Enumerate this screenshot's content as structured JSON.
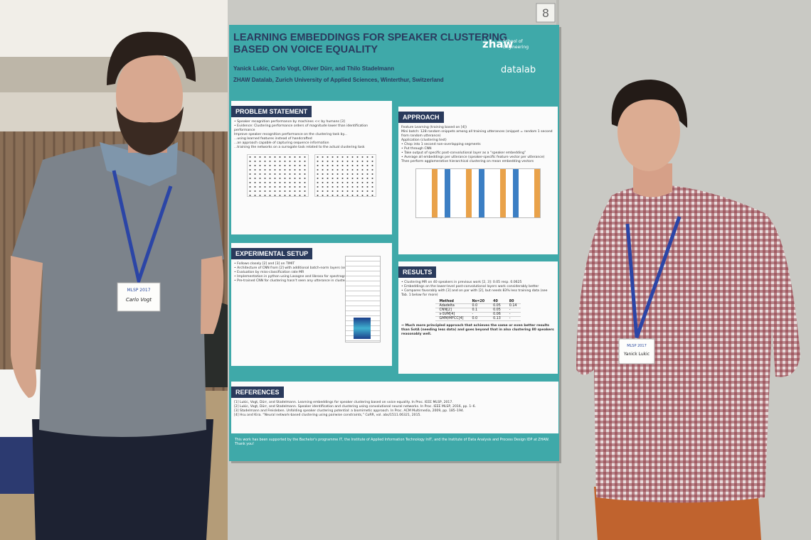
{
  "poster": {
    "number": "8",
    "title": [
      "LEARNING EMBEDDINGS FOR SPEAKER CLUSTERING",
      "BASED ON VOICE EQUALITY"
    ],
    "authors": "Yanick Lukic, Carlo Vogt, Oliver Dürr, and Thilo Stadelmann",
    "affiliation": "ZHAW Datalab, Zurich University of Applied Sciences, Winterthur, Switzerland",
    "logos": {
      "zhaw": "zhaw",
      "school": [
        "School of",
        "Engineering"
      ],
      "datalab": "datalab"
    },
    "sections": [
      {
        "heading": "PROBLEM STATEMENT",
        "lines": [
          "• Speaker recognition performance by machines << by humans [3]",
          "• Evidence: Clustering performance orders of magnitude lower than identification performance",
          "Improve speaker recognition performance on the clustering task by...",
          "...using learned features instead of handcrafted",
          "...an approach capable of capturing sequence information",
          "...training the networks on a surrogate task related to the actual clustering task"
        ]
      },
      {
        "heading": "APPROACH",
        "lines": [
          "Feature Learning (training based on [4])",
          "Mini batch: 128 random snippets among all training utterances (snippet = random 1 second from random utterance)",
          "Application (clustering test)",
          "• Chop into 1 second non-overlapping segments",
          "• Put through CNN",
          "• Take output of specific post-convolutional layer as a “speaker embedding”",
          "• Average all embeddings per utterance (speaker-specific feature vector per utterance)",
          "Then perform agglomerative hierarchical clustering on mean embedding vectors"
        ]
      },
      {
        "heading": "EXPERIMENTAL SETUP",
        "lines": [
          "• Follows closely [2] and [3] on TIMIT",
          "• Architecture of CNN from [2] with additional batch-norm layers (see Fig. 3)",
          "• Evaluation by miss-classification rate MR",
          "• Implementation in python using Lasagne and librosa for spectrograms",
          "• Pre-trained CNN for clustering hasn't seen any utterance in cluster during training!"
        ]
      },
      {
        "heading": "RESULTS",
        "lines": [
          "• Clustering MR on 40 speakers in previous work [2, 3]: 0.05 resp. 0.0625",
          "• Embeddings on the lower-level post-convolutional layers work considerably better",
          "• Compares favorably with [3] and on par with [2], but needs 83% less training data (see Tab. 1 below for more)"
        ],
        "table": {
          "header": [
            "Method",
            "Ns=20",
            "40",
            "80"
          ],
          "rows": [
            [
              "Adadelta",
              "0.0",
              "0.05",
              "0.14"
            ],
            [
              "CNN[2]",
              "0.1",
              "0.05",
              "-"
            ],
            [
              "ν-SVM[4]",
              "-",
              "0.06",
              "-"
            ],
            [
              "GMM/MFCC[4]",
              "0.0",
              "0.13",
              "-"
            ]
          ]
        },
        "conclusion": "⇒ Much more principled approach that achieves the same or even better results than SotA (needing less data) and goes beyond that in also clustering 80 speakers reasonably well."
      },
      {
        "heading": "REFERENCES",
        "lines": [
          "[1] Lukic, Vogt, Dürr, and Stadelmann. Learning embeddings for speaker clustering based on voice equality. In Proc. IEEE MLSP, 2017.",
          "[2] Lukic, Vogt, Dürr, and Stadelmann. Speaker identification and clustering using convolutional neural networks. In Proc. IEEE MLSP, 2016, pp. 1–6.",
          "[3] Stadelmann and Freisleben. Unfolding speaker clustering potential: a biomimetic approach. In Proc. ACM Multimedia, 2009, pp. 185–194.",
          "[4] Hsu and Kira. “Neural network-based clustering using pairwise constraints,” CoRR, vol. abs/1511.06321, 2015."
        ]
      }
    ],
    "acknowledgment": "This work has been supported by the Bachelor's programme IT, the Institute of Applied Information Technology InIT, and the Institute of Data Analysis and Process Design IDP at ZHAW. Thank you!"
  },
  "badges": [
    {
      "event": "MLSP 2017",
      "name": "Carlo Vogt"
    },
    {
      "event": "MLSP 2017",
      "name": "Yanick Lukic"
    }
  ]
}
